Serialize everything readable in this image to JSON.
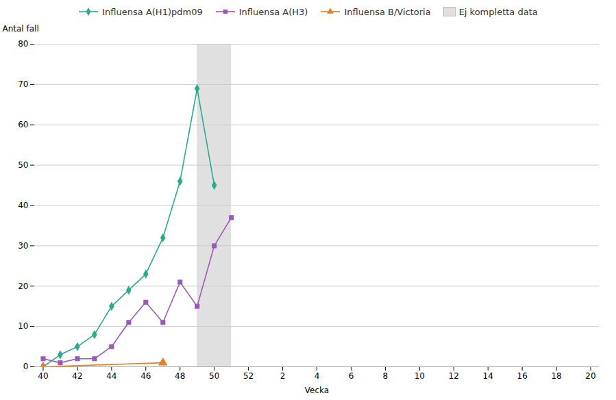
{
  "chart_data": {
    "type": "line",
    "xlabel": "Vecka",
    "ylabel": "Antal fall",
    "categories": [
      "40",
      null,
      "42",
      null,
      "44",
      null,
      "46",
      null,
      "48",
      null,
      "50",
      null,
      "52",
      null,
      "2",
      null,
      "4",
      null,
      "6",
      null,
      "8",
      null,
      "10",
      null,
      "12",
      null,
      "14",
      null,
      "16",
      null,
      "18",
      null,
      "20"
    ],
    "series": [
      {
        "name": "Influensa A(H1)pdm09",
        "color": "#2aab8e",
        "marker": "diamond",
        "values": [
          0,
          3,
          5,
          8,
          15,
          19,
          23,
          32,
          46,
          69,
          45,
          null,
          null,
          null,
          null,
          null,
          null,
          null,
          null,
          null,
          null,
          null,
          null,
          null,
          null,
          null,
          null,
          null,
          null,
          null,
          null,
          null,
          null
        ]
      },
      {
        "name": "Influensa A(H3)",
        "color": "#9b59b6",
        "marker": "square",
        "values": [
          2,
          1,
          2,
          2,
          5,
          11,
          16,
          11,
          21,
          15,
          30,
          37,
          null,
          null,
          null,
          null,
          null,
          null,
          null,
          null,
          null,
          null,
          null,
          null,
          null,
          null,
          null,
          null,
          null,
          null,
          null,
          null,
          null
        ]
      },
      {
        "name": "Influensa B/Victoria",
        "color": "#e67e22",
        "marker": "triangle",
        "values": [
          0,
          null,
          null,
          null,
          null,
          null,
          null,
          1,
          null,
          null,
          null,
          null,
          null,
          null,
          null,
          null,
          null,
          null,
          null,
          null,
          null,
          null,
          null,
          null,
          null,
          null,
          null,
          null,
          null,
          null,
          null,
          null,
          null
        ]
      }
    ],
    "shaded": {
      "name": "Ej kompletta data",
      "color": "#e0e0e0",
      "from_index": 9,
      "to_index": 11
    },
    "ylim": [
      0,
      80
    ],
    "yticks": [
      0,
      10,
      20,
      30,
      40,
      50,
      60,
      70,
      80
    ],
    "grid": true,
    "legend": "top"
  }
}
